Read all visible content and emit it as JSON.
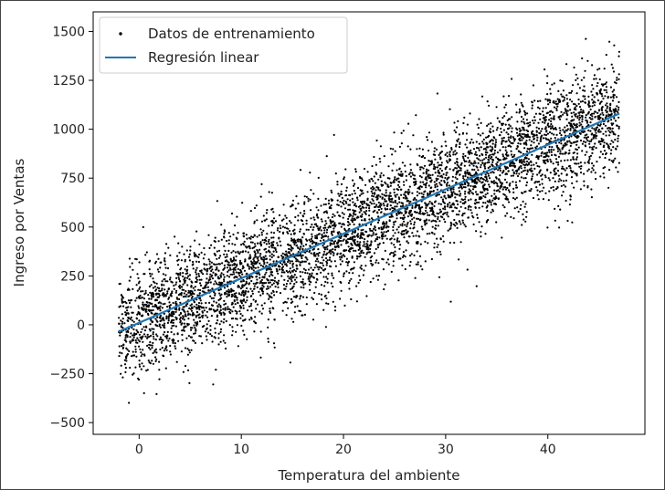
{
  "chart_data": {
    "type": "scatter",
    "title": "",
    "xlabel": "Temperatura del ambiente",
    "ylabel": "Ingreso por Ventas",
    "xlim": [
      -4.5,
      49.5
    ],
    "ylim": [
      -560,
      1600
    ],
    "xticks": [
      0,
      10,
      20,
      30,
      40
    ],
    "yticks": [
      -500,
      -250,
      0,
      250,
      500,
      750,
      1000,
      1250,
      1500
    ],
    "grid": false,
    "legend_position": "top-left",
    "series": [
      {
        "name": "Datos de entrenamiento",
        "kind": "points",
        "color": "#000000",
        "x_range": [
          -2,
          47
        ],
        "relation": "y ≈ 22.8·x + 10 with noise (spread ≈ ±150)",
        "approx_points": 10000
      },
      {
        "name": "Regresión linear",
        "kind": "line",
        "color": "#1f77b4",
        "x": [
          -2,
          47
        ],
        "y": [
          -35,
          1080
        ]
      }
    ]
  }
}
